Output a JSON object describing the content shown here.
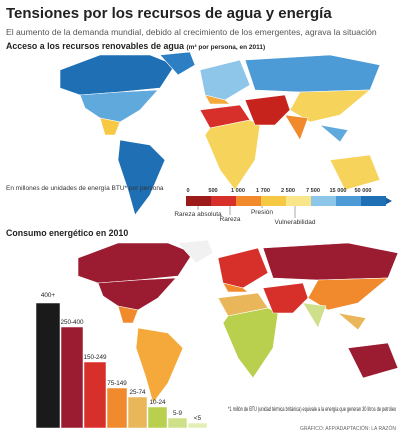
{
  "header": {
    "title": "Tensiones por los recursos de agua y energía",
    "subtitle": "El aumento de la demanda mundial, debido al crecimiento de los emergentes, agrava la situación"
  },
  "water_map": {
    "title": "Acceso a los recursos renovables de agua",
    "unit": "(m³ por persona, en 2011)",
    "scale_labels": [
      "0",
      "500",
      "1 000",
      "1 700",
      "2 500",
      "7 500",
      "15 000",
      "50 000"
    ],
    "zone_labels": [
      "Rareza absoluta",
      "Rareza",
      "Presión",
      "Vulnerabilidad"
    ]
  },
  "energy_map": {
    "title": "Consumo energético en 2010",
    "legend_note": "En millones de unidades de energía BTU* por persona",
    "classes": [
      "400+",
      "250-400",
      "150-249",
      "75-149",
      "25-74",
      "10-24",
      "5-9",
      "<5"
    ],
    "footnote": "*1 millón de BTU (unidad térmica británica) equivale a la energía que generan 30 litros de petróleo",
    "credit": "GRÁFICO: AFP/ADAPTACIÓN: LA RAZÓN"
  }
}
